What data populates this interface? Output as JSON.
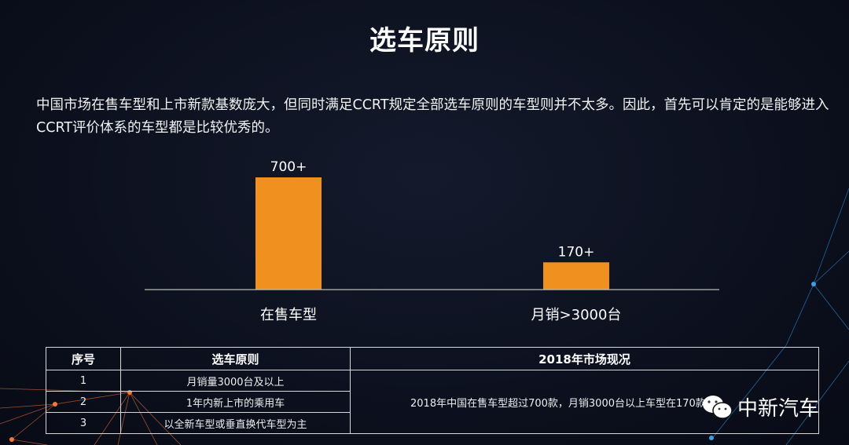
{
  "title": "选车原则",
  "intro": "中国市场在售车型和上市新款基数庞大，但同时满足CCRT规定全部选车原则的车型则并不太多。因此，首先可以肯定的是能够进入CCRT评价体系的车型都是比较优秀的。",
  "chart_data": {
    "type": "bar",
    "categories": [
      "在售车型",
      "月销>3000台"
    ],
    "values": [
      700,
      170
    ],
    "data_labels": [
      "700+",
      "170+"
    ],
    "bar_color": "#f0901e",
    "ylim": [
      0,
      800
    ],
    "grid": false
  },
  "table": {
    "headers": [
      "序号",
      "选车原则",
      "2018年市场现况"
    ],
    "rows": [
      {
        "no": "1",
        "rule": "月销量3000台及以上"
      },
      {
        "no": "2",
        "rule": "1年内新上市的乘用车"
      },
      {
        "no": "3",
        "rule": "以全新车型或垂直换代车型为主"
      }
    ],
    "status": "2018年中国在售车型超过700款，月销3000台以上车型在170款以"
  },
  "watermark": {
    "icon": "wechat-icon",
    "text": "中新汽车"
  }
}
